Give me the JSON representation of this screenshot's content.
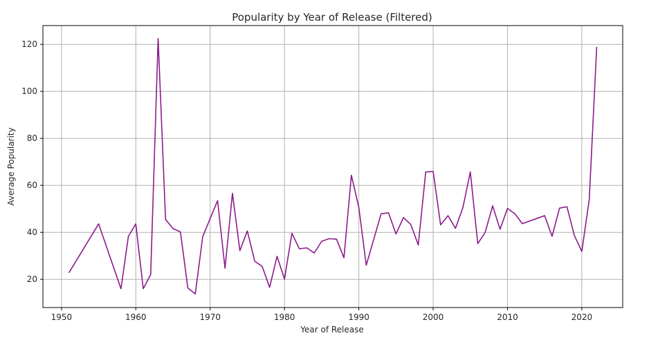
{
  "chart_data": {
    "type": "line",
    "title": "Popularity by Year of Release (Filtered)",
    "xlabel": "Year of Release",
    "ylabel": "Average Popularity",
    "xlim": [
      1947.5,
      2025.5
    ],
    "ylim": [
      8,
      128
    ],
    "xticks": [
      1950,
      1960,
      1970,
      1980,
      1990,
      2000,
      2010,
      2020
    ],
    "yticks": [
      20,
      40,
      60,
      80,
      100,
      120
    ],
    "grid": true,
    "line_color": "#8b1a8b",
    "series": [
      {
        "x": [
          1951,
          1955,
          1958,
          1959,
          1960,
          1961,
          1962,
          1963,
          1964,
          1965,
          1966,
          1967,
          1968,
          1969,
          1971,
          1972,
          1973,
          1974,
          1975,
          1976,
          1977,
          1978,
          1979,
          1980,
          1981,
          1982,
          1983,
          1984,
          1985,
          1986,
          1987,
          1988,
          1989,
          1990,
          1991,
          1993,
          1994,
          1995,
          1996,
          1997,
          1998,
          1999,
          2000,
          2001,
          2002,
          2003,
          2004,
          2005,
          2006,
          2007,
          2008,
          2009,
          2010,
          2011,
          2012,
          2015,
          2016,
          2017,
          2018,
          2019,
          2020,
          2021,
          2022
        ],
        "y": [
          22.8,
          43.6,
          16.0,
          38.3,
          43.6,
          16.0,
          22.0,
          122.5,
          45.5,
          41.6,
          40.2,
          16.3,
          13.8,
          38.2,
          53.5,
          24.7,
          56.6,
          32.2,
          40.6,
          27.7,
          25.5,
          16.6,
          29.8,
          20.1,
          39.6,
          33.0,
          33.4,
          31.2,
          36.2,
          37.3,
          37.1,
          29.2,
          64.3,
          50.6,
          26.0,
          47.9,
          48.3,
          39.3,
          46.3,
          43.3,
          34.6,
          65.7,
          65.9,
          43.2,
          47.1,
          41.7,
          50.5,
          65.7,
          35.2,
          40.0,
          51.3,
          41.3,
          50.2,
          47.9,
          43.7,
          47.1,
          38.3,
          50.3,
          50.9,
          38.6,
          31.9,
          54.0,
          118.9
        ]
      }
    ]
  }
}
